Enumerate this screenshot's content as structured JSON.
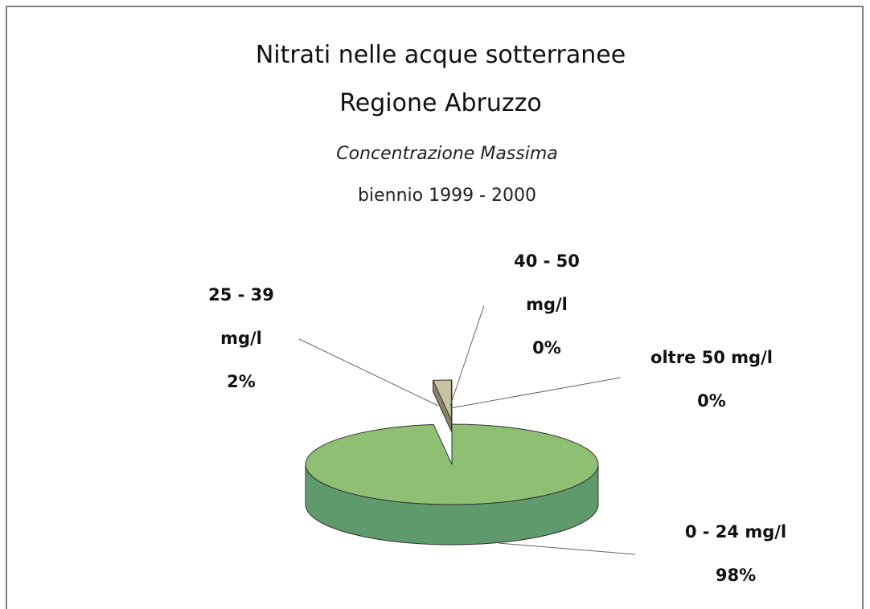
{
  "chart_data": {
    "type": "pie3d",
    "title": [
      "Nitrati nelle acque sotterranee",
      "Regione Abruzzo"
    ],
    "subtitle": [
      "Concentrazione Massima",
      "biennio 1999 - 2000"
    ],
    "categories": [
      "0 - 24 mg/l",
      "25 - 39 mg/l",
      "40 - 50 mg/l",
      "oltre 50 mg/l"
    ],
    "values": [
      98,
      2,
      0,
      0
    ],
    "value_labels": [
      "98%",
      "2%",
      "0%",
      "0%"
    ],
    "colors": [
      "#8fbf73",
      "#c9c4a0",
      "#f2e52a",
      "#d0d0ff"
    ]
  }
}
